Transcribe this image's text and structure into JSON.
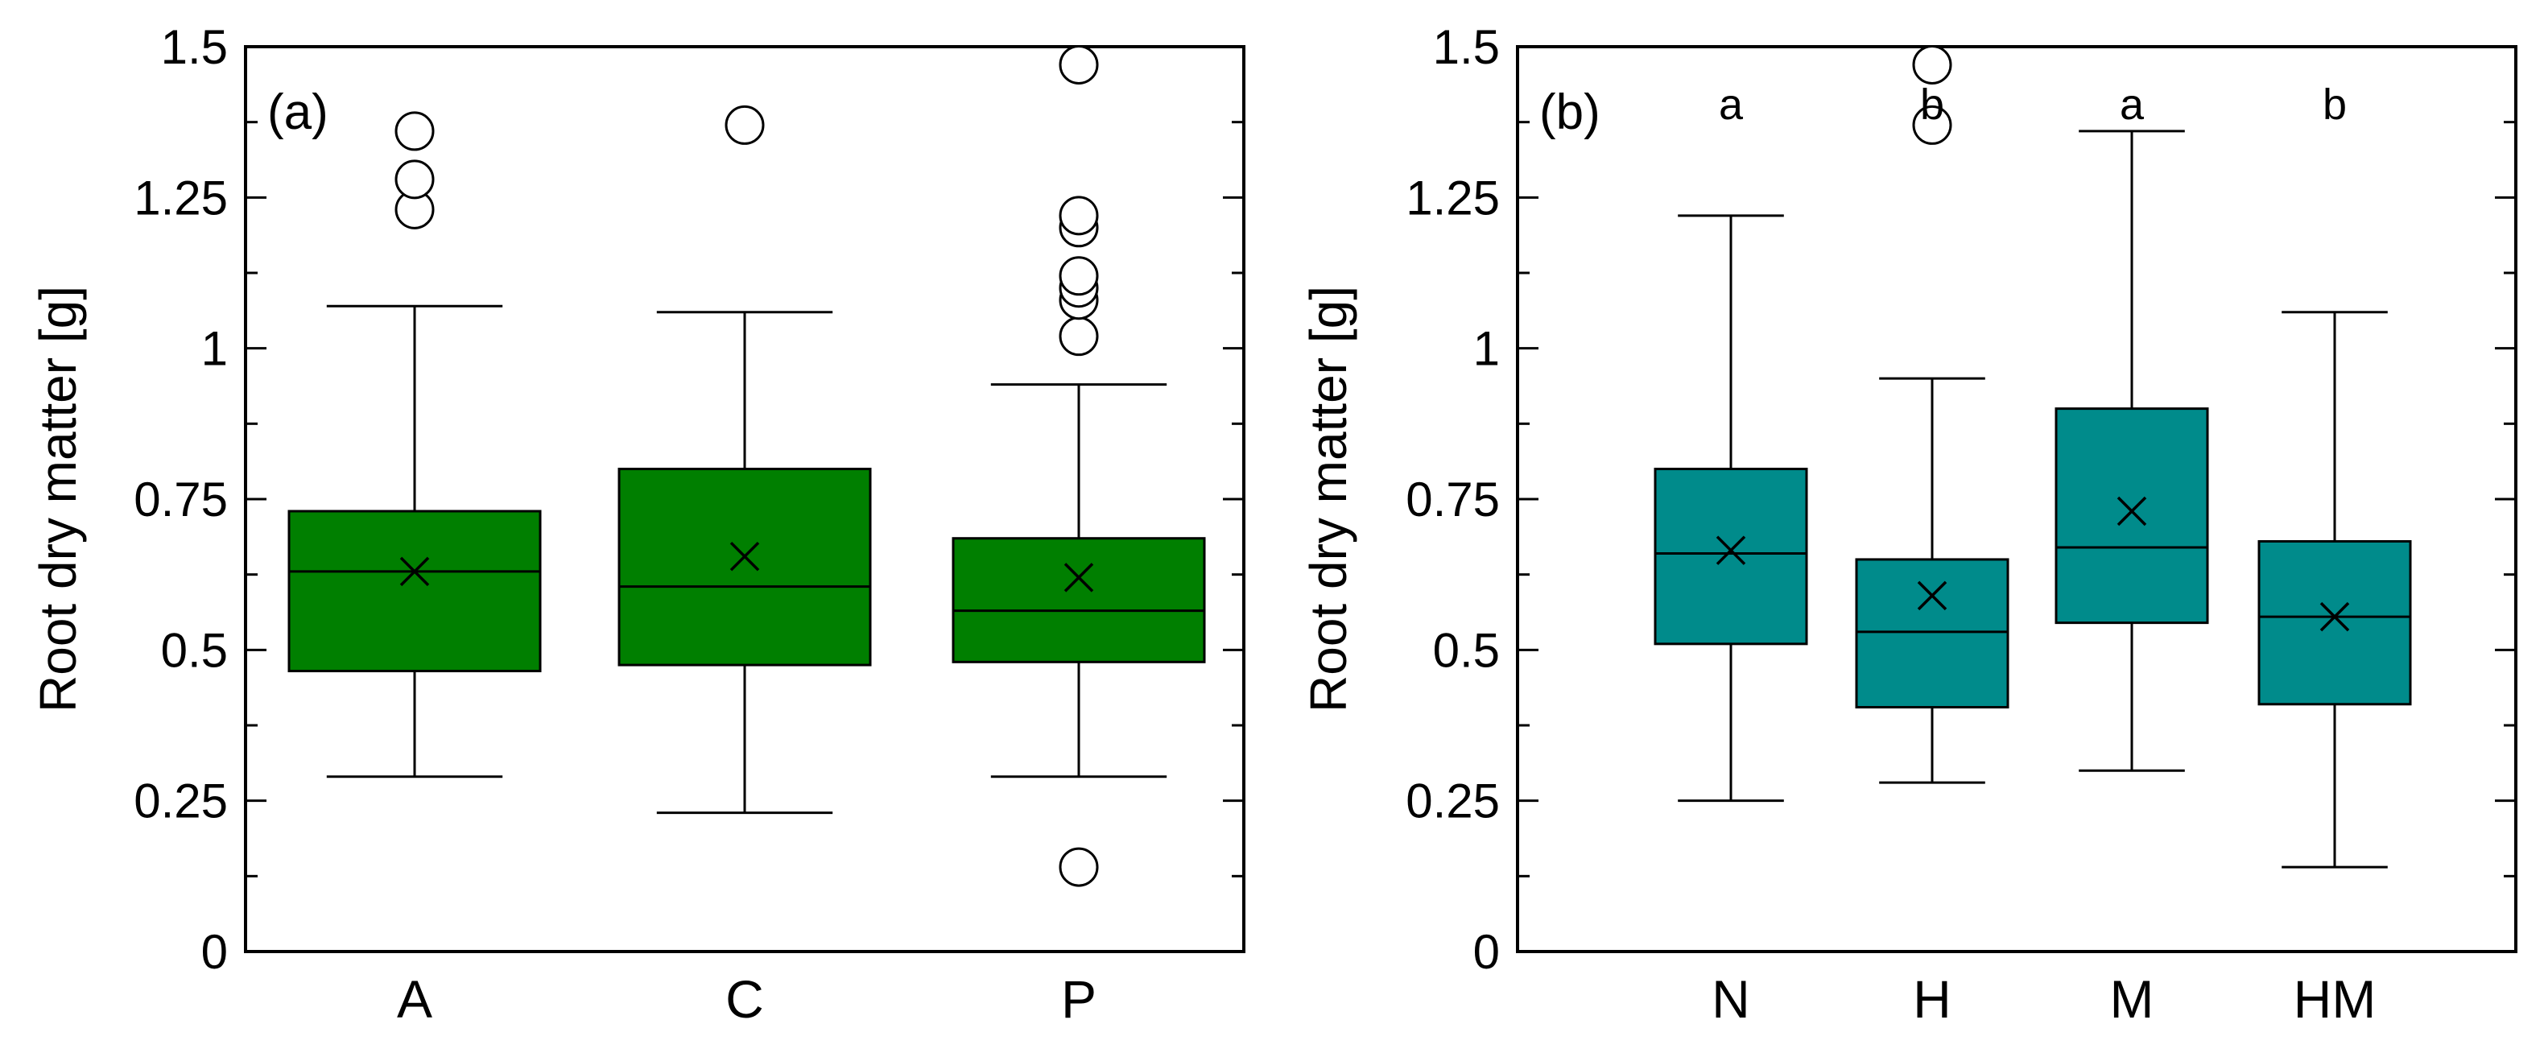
{
  "chart_data": [
    {
      "type": "box",
      "panel_label": "(a)",
      "ylabel": "Root dry matter [g]",
      "xlabel": "",
      "ylim": [
        0,
        1.5
      ],
      "yticks": [
        0,
        0.25,
        0.5,
        0.75,
        1,
        1.25,
        1.5
      ],
      "ytick_labels": [
        "0",
        "0.25",
        "0.5",
        "0.75",
        "1",
        "1.25",
        "1.5"
      ],
      "box_color": "#007f00",
      "categories": [
        "A",
        "C",
        "P"
      ],
      "boxes": [
        {
          "category": "A",
          "whisker_low": 0.29,
          "q1": 0.465,
          "median": 0.63,
          "q3": 0.73,
          "whisker_high": 1.07,
          "mean": 0.63,
          "outliers": [
            1.23,
            1.28,
            1.36
          ],
          "sig": ""
        },
        {
          "category": "C",
          "whisker_low": 0.23,
          "q1": 0.475,
          "median": 0.605,
          "q3": 0.8,
          "whisker_high": 1.06,
          "mean": 0.655,
          "outliers": [
            1.37
          ],
          "sig": ""
        },
        {
          "category": "P",
          "whisker_low": 0.29,
          "q1": 0.48,
          "median": 0.565,
          "q3": 0.685,
          "whisker_high": 0.94,
          "mean": 0.62,
          "outliers": [
            0.14,
            1.02,
            1.08,
            1.1,
            1.12,
            1.2,
            1.22,
            1.47
          ],
          "sig": ""
        }
      ]
    },
    {
      "type": "box",
      "panel_label": "(b)",
      "ylabel": "Root dry matter [g]",
      "xlabel": "",
      "ylim": [
        0,
        1.5
      ],
      "yticks": [
        0,
        0.25,
        0.5,
        0.75,
        1,
        1.25,
        1.5
      ],
      "ytick_labels": [
        "0",
        "0.25",
        "0.5",
        "0.75",
        "1",
        "1.25",
        "1.5"
      ],
      "box_color": "#008b8b",
      "categories": [
        "N",
        "H",
        "M",
        "HM"
      ],
      "boxes": [
        {
          "category": "N",
          "whisker_low": 0.25,
          "q1": 0.51,
          "median": 0.66,
          "q3": 0.8,
          "whisker_high": 1.22,
          "mean": 0.665,
          "outliers": [],
          "sig": "a"
        },
        {
          "category": "H",
          "whisker_low": 0.28,
          "q1": 0.405,
          "median": 0.53,
          "q3": 0.65,
          "whisker_high": 0.95,
          "mean": 0.59,
          "outliers": [
            1.37,
            1.47
          ],
          "sig": "b"
        },
        {
          "category": "M",
          "whisker_low": 0.3,
          "q1": 0.545,
          "median": 0.67,
          "q3": 0.9,
          "whisker_high": 1.36,
          "mean": 0.73,
          "outliers": [],
          "sig": "a"
        },
        {
          "category": "HM",
          "whisker_low": 0.14,
          "q1": 0.41,
          "median": 0.555,
          "q3": 0.68,
          "whisker_high": 1.06,
          "mean": 0.555,
          "outliers": [],
          "sig": "b"
        }
      ]
    }
  ]
}
